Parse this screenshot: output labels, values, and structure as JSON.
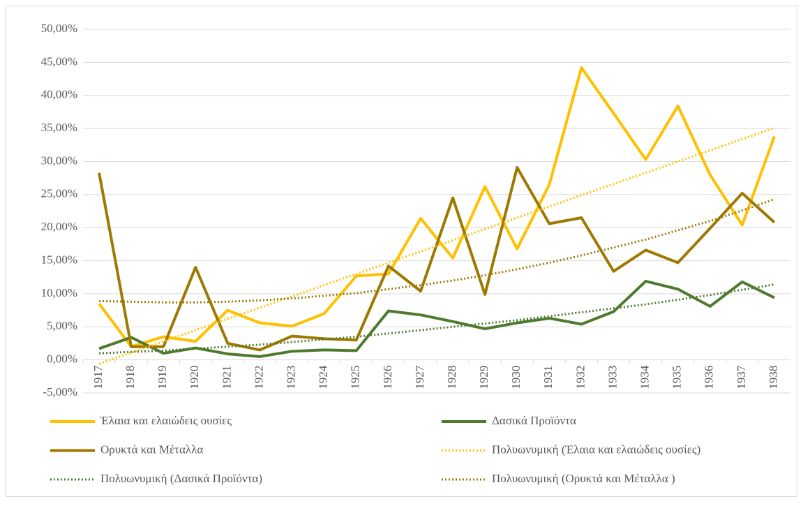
{
  "chart_data": {
    "type": "line",
    "categories": [
      "1917",
      "1918",
      "1919",
      "1920",
      "1921",
      "1922",
      "1923",
      "1924",
      "1925",
      "1926",
      "1927",
      "1928",
      "1929",
      "1930",
      "1931",
      "1932",
      "1933",
      "1934",
      "1935",
      "1936",
      "1937",
      "1938"
    ],
    "series": [
      {
        "name": "Έλαια και ελαιώδεις ουσίες",
        "color": "#FFC000",
        "style": "solid",
        "values": [
          8.5,
          2.0,
          3.5,
          2.8,
          7.5,
          5.6,
          5.1,
          7.0,
          12.7,
          13.0,
          21.4,
          15.4,
          26.2,
          16.8,
          26.5,
          44.2,
          37.3,
          30.3,
          38.4,
          28.0,
          20.4,
          33.8
        ]
      },
      {
        "name": "Δασικά  Προϊόντα",
        "color": "#4E7A2E",
        "style": "solid",
        "values": [
          1.7,
          3.4,
          1.0,
          1.8,
          0.9,
          0.5,
          1.3,
          1.5,
          1.4,
          7.4,
          6.8,
          5.8,
          4.7,
          5.6,
          6.3,
          5.4,
          7.3,
          11.9,
          10.7,
          8.1,
          11.8,
          9.4
        ]
      },
      {
        "name": "Ορυκτά και Μέταλλα",
        "color": "#9E7800",
        "style": "solid",
        "values": [
          28.3,
          2.0,
          2.0,
          14.0,
          2.5,
          1.5,
          3.6,
          3.2,
          3.0,
          14.2,
          10.4,
          24.5,
          9.9,
          29.1,
          20.6,
          21.5,
          13.4,
          16.6,
          14.7,
          19.9,
          25.2,
          20.8
        ]
      },
      {
        "name": "Πολυωνυμική (Έλαια και ελαιώδεις ουσίες)",
        "color": "#FFC000",
        "style": "dotted",
        "values": [
          -0.6,
          1.1,
          2.8,
          4.5,
          6.2,
          7.9,
          9.6,
          11.3,
          13.0,
          14.7,
          16.4,
          18.1,
          19.8,
          21.5,
          23.2,
          24.9,
          26.6,
          28.3,
          30.0,
          31.7,
          33.4,
          35.1
        ]
      },
      {
        "name": "Πολυωνυμική (Δασικά  Προϊόντα)",
        "color": "#4E7A2E",
        "style": "dotted",
        "values": [
          1.0,
          1.2,
          1.4,
          1.7,
          2.0,
          2.3,
          2.7,
          3.1,
          3.5,
          4.0,
          4.5,
          5.0,
          5.5,
          6.0,
          6.6,
          7.2,
          7.8,
          8.4,
          9.1,
          9.8,
          10.6,
          11.4
        ]
      },
      {
        "name": "Πολυωνυμική (Ορυκτά και Μέταλλα )",
        "color": "#9E7800",
        "style": "dotted",
        "values": [
          8.9,
          8.8,
          8.7,
          8.7,
          8.8,
          9.0,
          9.3,
          9.7,
          10.1,
          10.7,
          11.3,
          12.0,
          12.8,
          13.7,
          14.7,
          15.8,
          17.0,
          18.2,
          19.6,
          21.0,
          22.6,
          24.3
        ]
      }
    ],
    "ylim": [
      -5,
      50
    ],
    "yticks": [
      {
        "value": -5,
        "label": "-5,00%"
      },
      {
        "value": 0,
        "label": "0,00%"
      },
      {
        "value": 5,
        "label": "5,00%"
      },
      {
        "value": 10,
        "label": "10,00%"
      },
      {
        "value": 15,
        "label": "15,00%"
      },
      {
        "value": 20,
        "label": "20,00%"
      },
      {
        "value": 25,
        "label": "25,00%"
      },
      {
        "value": 30,
        "label": "30,00%"
      },
      {
        "value": 35,
        "label": "35,00%"
      },
      {
        "value": 40,
        "label": "40,00%"
      },
      {
        "value": 45,
        "label": "45,00%"
      },
      {
        "value": 50,
        "label": "50,00%"
      }
    ],
    "grid": true,
    "legend": "bottom"
  }
}
